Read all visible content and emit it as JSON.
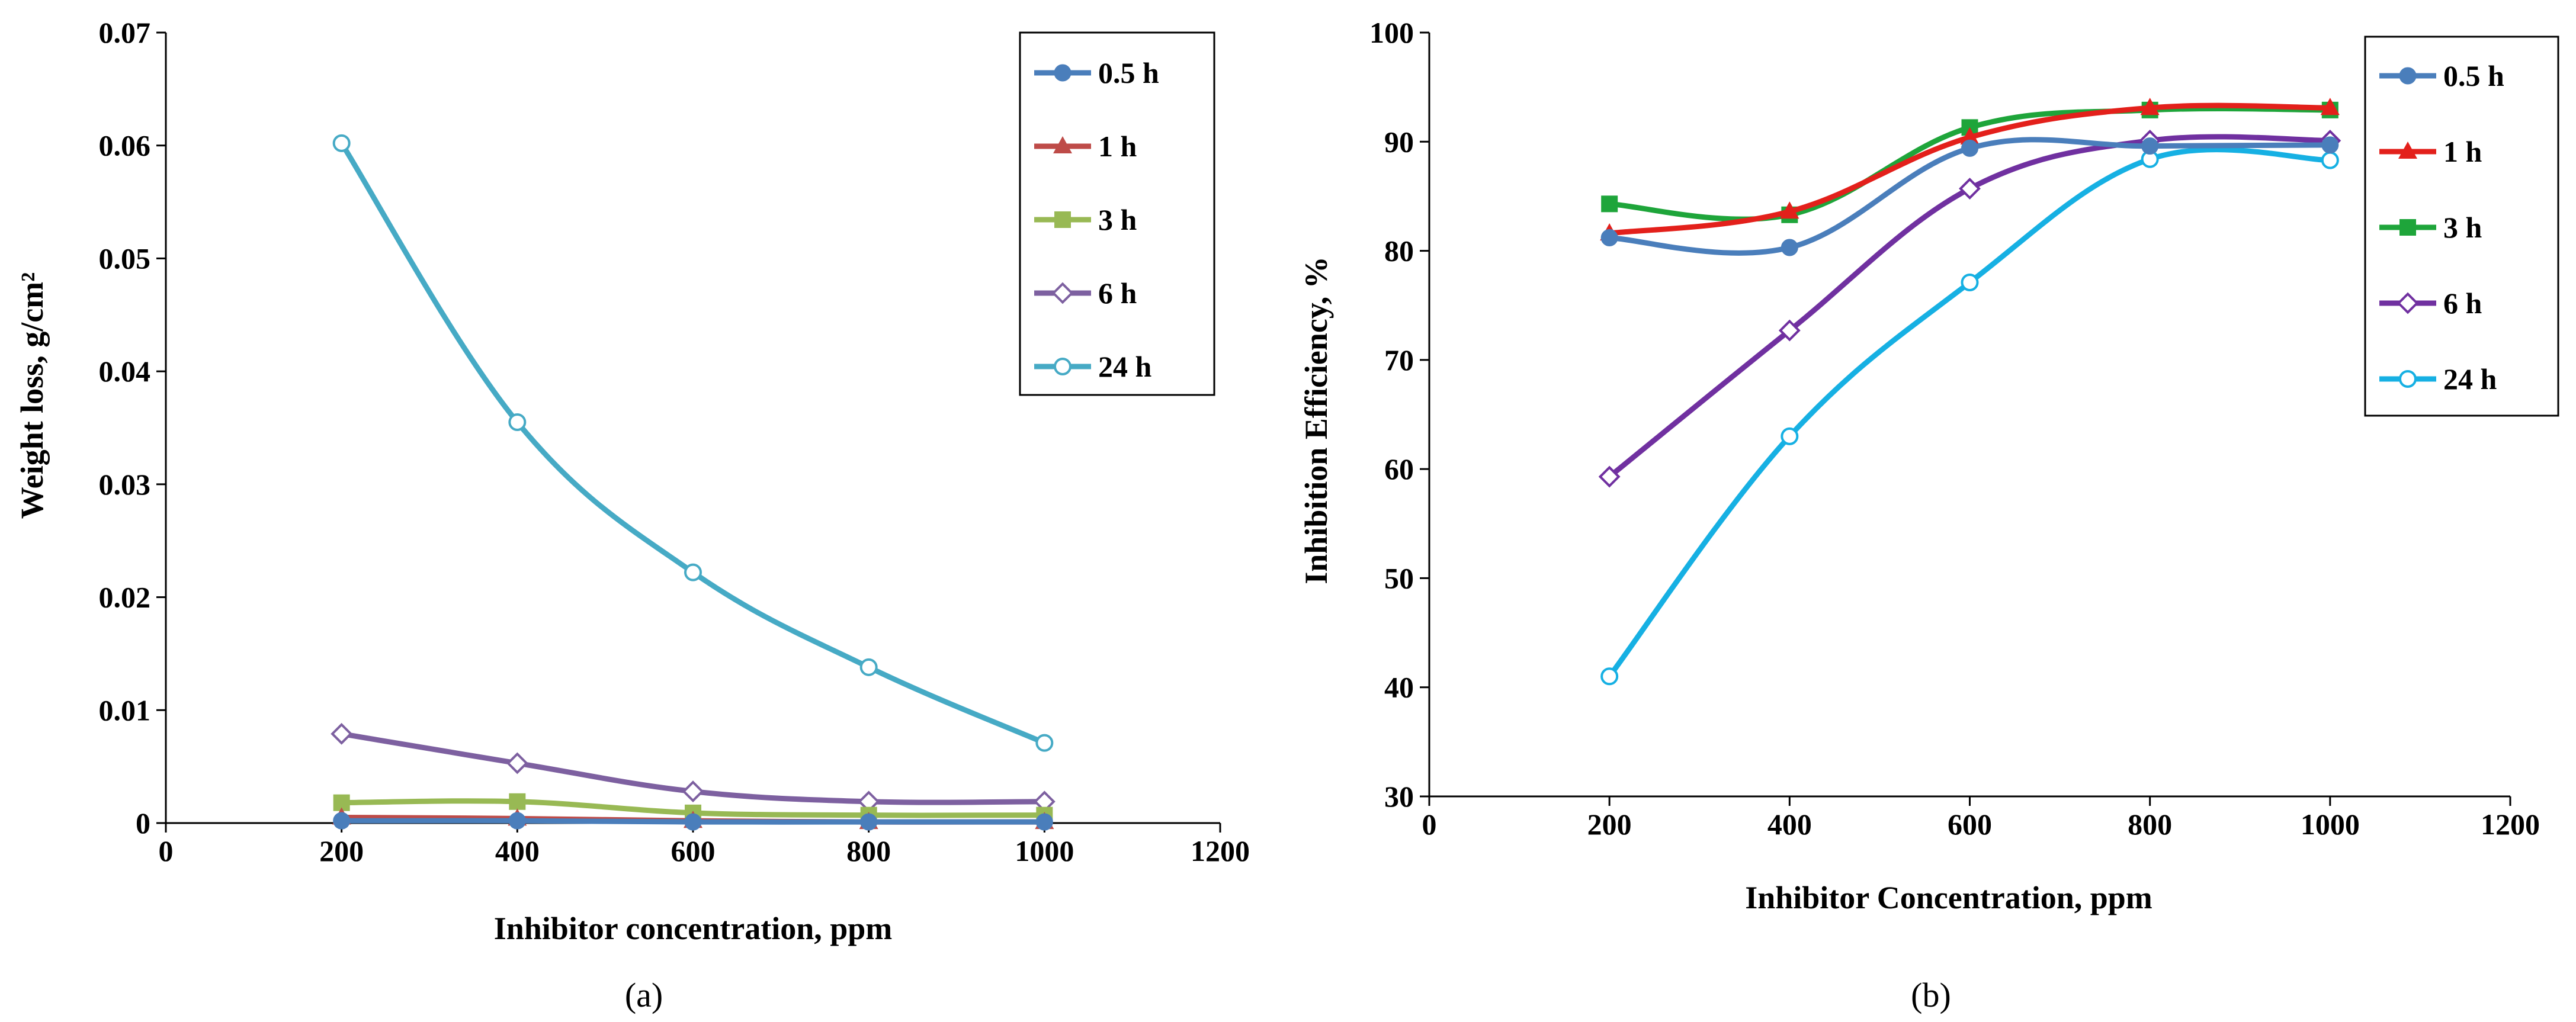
{
  "chart_data": [
    {
      "type": "line",
      "panel_label": "(a)",
      "title": "",
      "xlabel": "Inhibitor concentration, ppm",
      "ylabel": "Weight loss, g/cm²",
      "xlim": [
        0,
        1200
      ],
      "ylim": [
        0,
        0.07
      ],
      "x_ticks": [
        0,
        200,
        400,
        600,
        800,
        1000,
        1200
      ],
      "x_tick_labels": [
        "0",
        "200",
        "400",
        "600",
        "800",
        "1000",
        "1200"
      ],
      "y_ticks": [
        0,
        0.01,
        0.02,
        0.03,
        0.04,
        0.05,
        0.06,
        0.07
      ],
      "y_tick_labels": [
        "0",
        "0.01",
        "0.02",
        "0.03",
        "0.04",
        "0.05",
        "0.06",
        "0.07"
      ],
      "grid": false,
      "legend_position": "top-right",
      "x": [
        200,
        400,
        600,
        800,
        1000
      ],
      "series": [
        {
          "name": "0.5 h",
          "color": "#4a7ebb",
          "marker": "circle-filled",
          "values": [
            0.0002,
            0.0002,
            0.0001,
            0.0001,
            0.0001
          ]
        },
        {
          "name": "1 h",
          "color": "#be4b48",
          "marker": "triangle-filled",
          "values": [
            0.0005,
            0.0004,
            0.0002,
            0.0001,
            0.0001
          ]
        },
        {
          "name": "3 h",
          "color": "#98b954",
          "marker": "square-filled",
          "values": [
            0.0018,
            0.0019,
            0.0009,
            0.0007,
            0.0007
          ]
        },
        {
          "name": "6 h",
          "color": "#7d60a0",
          "marker": "diamond-open",
          "values": [
            0.0079,
            0.0053,
            0.0028,
            0.0019,
            0.0019
          ]
        },
        {
          "name": "24 h",
          "color": "#46aac5",
          "marker": "circle-open",
          "values": [
            0.0602,
            0.0355,
            0.0222,
            0.0138,
            0.0071
          ]
        }
      ]
    },
    {
      "type": "line",
      "panel_label": "(b)",
      "title": "",
      "xlabel": "Inhibitor Concentration, ppm",
      "ylabel": "Inhibition Efficiency, %",
      "xlim": [
        0,
        1200
      ],
      "ylim": [
        30,
        100
      ],
      "x_ticks": [
        0,
        200,
        400,
        600,
        800,
        1000,
        1200
      ],
      "x_tick_labels": [
        "0",
        "200",
        "400",
        "600",
        "800",
        "1000",
        "1200"
      ],
      "y_ticks": [
        30,
        40,
        50,
        60,
        70,
        80,
        90,
        100
      ],
      "y_tick_labels": [
        "30",
        "40",
        "50",
        "60",
        "70",
        "80",
        "90",
        "100"
      ],
      "grid": false,
      "legend_position": "top-right",
      "x": [
        200,
        400,
        600,
        800,
        1000
      ],
      "series": [
        {
          "name": "0.5 h",
          "color": "#4a7ebb",
          "marker": "circle-filled",
          "values": [
            81.2,
            80.3,
            89.4,
            89.6,
            89.7
          ]
        },
        {
          "name": "1 h",
          "color": "#e3201b",
          "marker": "triangle-filled",
          "values": [
            81.6,
            83.6,
            90.4,
            93.1,
            93.1
          ]
        },
        {
          "name": "3 h",
          "color": "#1ea53a",
          "marker": "square-filled",
          "values": [
            84.3,
            83.3,
            91.3,
            92.9,
            92.9
          ]
        },
        {
          "name": "6 h",
          "color": "#7030a0",
          "marker": "diamond-open",
          "values": [
            59.3,
            72.7,
            85.7,
            90.1,
            90.1
          ]
        },
        {
          "name": "24 h",
          "color": "#16b0e3",
          "marker": "circle-open",
          "values": [
            41.0,
            63.0,
            77.1,
            88.4,
            88.3
          ]
        }
      ]
    }
  ]
}
